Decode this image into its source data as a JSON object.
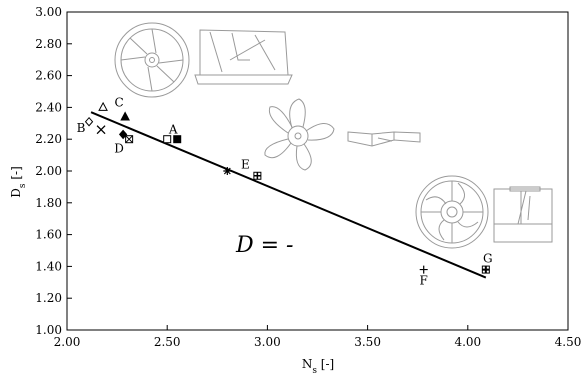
{
  "chart_data": {
    "type": "scatter",
    "xlabel_main": "N",
    "xlabel_sub": "s",
    "xlabel_unit": "[-]",
    "ylabel_main": "D",
    "ylabel_sub": "s",
    "ylabel_unit": "[-]",
    "xlim": [
      2.0,
      4.5
    ],
    "ylim": [
      1.0,
      3.0
    ],
    "x_ticks": [
      "2.00",
      "2.50",
      "3.00",
      "3.50",
      "4.00",
      "4.50"
    ],
    "x_tick_values": [
      2.0,
      2.5,
      3.0,
      3.5,
      4.0,
      4.5
    ],
    "y_ticks": [
      "1.00",
      "1.20",
      "1.40",
      "1.60",
      "1.80",
      "2.00",
      "2.20",
      "2.40",
      "2.60",
      "2.80",
      "3.00"
    ],
    "y_tick_values": [
      1.0,
      1.2,
      1.4,
      1.6,
      1.8,
      2.0,
      2.2,
      2.4,
      2.6,
      2.8,
      3.0
    ],
    "grid": false,
    "fit_line": {
      "x": [
        2.12,
        4.09
      ],
      "y": [
        2.37,
        1.33
      ]
    },
    "points": [
      {
        "x": 2.55,
        "y": 2.2,
        "marker": "square-filled"
      },
      {
        "x": 2.5,
        "y": 2.2,
        "marker": "square-open"
      },
      {
        "x": 2.11,
        "y": 2.31,
        "marker": "diamond-open"
      },
      {
        "x": 2.17,
        "y": 2.26,
        "marker": "x"
      },
      {
        "x": 2.18,
        "y": 2.4,
        "marker": "triangle-open"
      },
      {
        "x": 2.29,
        "y": 2.34,
        "marker": "triangle-filled"
      },
      {
        "x": 2.28,
        "y": 2.23,
        "marker": "diamond-filled"
      },
      {
        "x": 2.31,
        "y": 2.2,
        "marker": "square-x"
      },
      {
        "x": 2.8,
        "y": 2.0,
        "marker": "star"
      },
      {
        "x": 2.95,
        "y": 1.97,
        "marker": "square-cross"
      },
      {
        "x": 3.78,
        "y": 1.38,
        "marker": "plus"
      },
      {
        "x": 4.09,
        "y": 1.38,
        "marker": "square-plus"
      }
    ],
    "point_labels": [
      {
        "text": "A",
        "x": 2.53,
        "y": 2.26
      },
      {
        "text": "B",
        "x": 2.07,
        "y": 2.27
      },
      {
        "text": "C",
        "x": 2.26,
        "y": 2.43
      },
      {
        "text": "D",
        "x": 2.26,
        "y": 2.14
      },
      {
        "text": "E",
        "x": 2.89,
        "y": 2.04
      },
      {
        "text": "F",
        "x": 3.78,
        "y": 1.31
      },
      {
        "text": "G",
        "x": 4.1,
        "y": 1.45
      }
    ],
    "annotation": "D = -"
  }
}
